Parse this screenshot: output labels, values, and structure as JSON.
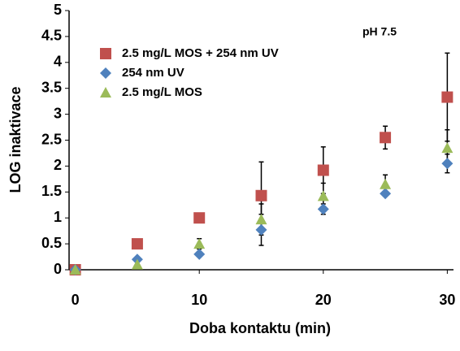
{
  "chart_data": {
    "type": "scatter",
    "x_label": "Doba kontaktu (min)",
    "y_label": "LOG inaktivace",
    "annotation": "pH 7.5",
    "xlim": [
      -0.5,
      30.5
    ],
    "xticks": [
      0,
      10,
      20,
      30
    ],
    "ylim": [
      0,
      5
    ],
    "yticks": [
      0,
      0.5,
      1,
      1.5,
      2,
      2.5,
      3,
      3.5,
      4,
      4.5,
      5
    ],
    "legend": "upper left",
    "x": [
      0,
      5,
      10,
      15,
      20,
      25,
      30
    ],
    "series": [
      {
        "name": "2.5 mg/L MOS + 254 nm UV",
        "color": "#c0504d",
        "marker": "square",
        "values": [
          0,
          0.5,
          1.0,
          1.43,
          1.92,
          2.55,
          3.33
        ],
        "errors": [
          null,
          null,
          null,
          0.65,
          0.45,
          0.22,
          0.85
        ]
      },
      {
        "name": "254 nm UV",
        "color": "#4f81bd",
        "marker": "diamond",
        "values": [
          0,
          0.2,
          0.3,
          0.77,
          1.17,
          1.47,
          2.05
        ],
        "errors": [
          null,
          null,
          null,
          0.3,
          0.1,
          null,
          0.18
        ]
      },
      {
        "name": "2.5 mg/L MOS",
        "color": "#9bbb59",
        "marker": "triangle",
        "values": [
          0,
          0.1,
          0.5,
          0.97,
          1.42,
          1.65,
          2.35
        ],
        "errors": [
          null,
          null,
          0.1,
          0.3,
          0.25,
          0.18,
          0.35
        ]
      }
    ]
  }
}
